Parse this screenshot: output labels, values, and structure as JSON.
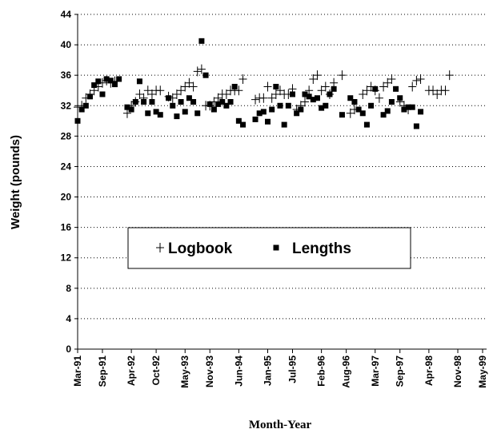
{
  "chart_data": {
    "type": "scatter",
    "y_label": "Weight (pounds)",
    "x_label": "Month-Year",
    "xlim": [
      "1991-03",
      "1999-05"
    ],
    "xticks": [
      {
        "value": "1991-03",
        "label": "Mar-91"
      },
      {
        "value": "1991-09",
        "label": "Sep-91"
      },
      {
        "value": "1992-04",
        "label": "Apr-92"
      },
      {
        "value": "1992-10",
        "label": "Oct-92"
      },
      {
        "value": "1993-05",
        "label": "May-93"
      },
      {
        "value": "1993-11",
        "label": "Nov-93"
      },
      {
        "value": "1994-06",
        "label": "Jun-94"
      },
      {
        "value": "1995-01",
        "label": "Jan-95"
      },
      {
        "value": "1995-07",
        "label": "Jul-95"
      },
      {
        "value": "1996-02",
        "label": "Feb-96"
      },
      {
        "value": "1996-08",
        "label": "Aug-96"
      },
      {
        "value": "1997-03",
        "label": "Mar-97"
      },
      {
        "value": "1997-09",
        "label": "Sep-97"
      },
      {
        "value": "1998-04",
        "label": "Apr-98"
      },
      {
        "value": "1998-11",
        "label": "Nov-98"
      },
      {
        "value": "1999-05",
        "label": "May-99"
      }
    ],
    "ylim": [
      0,
      44
    ],
    "yticks": [
      0,
      4,
      8,
      12,
      16,
      20,
      24,
      28,
      32,
      36,
      40,
      44
    ],
    "grid": true,
    "series": [
      {
        "name": "Logbook",
        "marker": "plus",
        "color": "#000000",
        "x": [
          "1991-03",
          "1991-04",
          "1991-05",
          "1991-06",
          "1991-07",
          "1991-08",
          "1991-09",
          "1991-10",
          "1991-11",
          "1991-12",
          "1992-03",
          "1992-04",
          "1992-05",
          "1992-06",
          "1992-07",
          "1992-08",
          "1992-09",
          "1992-10",
          "1992-11",
          "1993-01",
          "1993-02",
          "1993-03",
          "1993-04",
          "1993-05",
          "1993-06",
          "1993-07",
          "1993-08",
          "1993-09",
          "1993-10",
          "1993-11",
          "1993-12",
          "1994-01",
          "1994-02",
          "1994-03",
          "1994-04",
          "1994-05",
          "1994-06",
          "1994-07",
          "1994-10",
          "1994-11",
          "1994-12",
          "1995-01",
          "1995-02",
          "1995-03",
          "1995-04",
          "1995-05",
          "1995-06",
          "1995-07",
          "1995-08",
          "1995-09",
          "1995-10",
          "1995-11",
          "1995-12",
          "1996-01",
          "1996-02",
          "1996-03",
          "1996-04",
          "1996-05",
          "1996-07",
          "1996-09",
          "1996-10",
          "1996-12",
          "1997-01",
          "1997-02",
          "1997-03",
          "1997-04",
          "1997-05",
          "1997-06",
          "1997-07",
          "1997-09",
          "1997-10",
          "1997-11",
          "1997-12",
          "1998-01",
          "1998-02",
          "1998-04",
          "1998-05",
          "1998-06",
          "1998-07",
          "1998-08",
          "1998-09"
        ],
        "values": [
          31.8,
          32,
          33,
          33.5,
          34,
          34.5,
          35,
          35.3,
          35,
          35.2,
          31,
          32,
          32.5,
          33.5,
          33,
          34,
          33.5,
          34,
          34,
          33.2,
          33,
          33.5,
          34,
          34.5,
          35,
          34.5,
          36.5,
          36.8,
          32,
          32,
          32.5,
          33,
          33.5,
          33.5,
          34,
          34,
          34,
          35.5,
          32.8,
          33,
          33,
          34.5,
          33,
          33.5,
          34,
          33.5,
          33.5,
          34.2,
          31.5,
          32,
          32.5,
          34,
          35.5,
          36,
          34,
          34.5,
          33.5,
          35,
          36,
          31,
          31.5,
          33.5,
          34,
          34.5,
          34,
          33,
          34.5,
          35,
          35.5,
          32.5,
          32,
          31.5,
          34.5,
          35.3,
          35.5,
          34,
          34,
          33.5,
          34,
          34,
          36
        ]
      },
      {
        "name": "Lengths",
        "marker": "square",
        "color": "#000000",
        "x": [
          "1991-03",
          "1991-04",
          "1991-05",
          "1991-06",
          "1991-07",
          "1991-08",
          "1991-09",
          "1991-10",
          "1991-11",
          "1991-12",
          "1992-01",
          "1992-03",
          "1992-04",
          "1992-05",
          "1992-06",
          "1992-07",
          "1992-08",
          "1992-09",
          "1992-10",
          "1992-11",
          "1993-01",
          "1993-02",
          "1993-03",
          "1993-04",
          "1993-05",
          "1993-06",
          "1993-07",
          "1993-08",
          "1993-09",
          "1993-10",
          "1993-11",
          "1993-12",
          "1994-01",
          "1994-02",
          "1994-03",
          "1994-04",
          "1994-05",
          "1994-06",
          "1994-07",
          "1994-10",
          "1994-11",
          "1994-12",
          "1995-01",
          "1995-02",
          "1995-03",
          "1995-04",
          "1995-05",
          "1995-06",
          "1995-07",
          "1995-08",
          "1995-09",
          "1995-10",
          "1995-11",
          "1995-12",
          "1996-01",
          "1996-02",
          "1996-03",
          "1996-04",
          "1996-05",
          "1996-07",
          "1996-09",
          "1996-10",
          "1996-11",
          "1996-12",
          "1997-01",
          "1997-02",
          "1997-03",
          "1997-05",
          "1997-06",
          "1997-07",
          "1997-08",
          "1997-09",
          "1997-10",
          "1997-11",
          "1997-12",
          "1998-01",
          "1998-02"
        ],
        "values": [
          30,
          31.5,
          32,
          33.2,
          34.7,
          35.2,
          33.5,
          35.5,
          35.3,
          34.8,
          35.5,
          31.8,
          31.5,
          32.5,
          35.2,
          32.5,
          31,
          32.5,
          31.2,
          30.8,
          33,
          32,
          30.6,
          32.5,
          31.2,
          33,
          32.5,
          31,
          40.5,
          36,
          32.2,
          31.5,
          32.2,
          32.5,
          32,
          32.5,
          34.5,
          30,
          29.5,
          30.2,
          31,
          31.2,
          29.9,
          31.5,
          34.5,
          32,
          29.5,
          32,
          33.5,
          31,
          31.5,
          33.5,
          33.2,
          32.8,
          33,
          31.7,
          32,
          33.5,
          34.2,
          30.8,
          33,
          32.5,
          31.5,
          31,
          29.5,
          32,
          34.2,
          30.8,
          31.3,
          32.5,
          34.2,
          33,
          31.5,
          31.8,
          31.8,
          29.3,
          31.2
        ]
      }
    ]
  }
}
